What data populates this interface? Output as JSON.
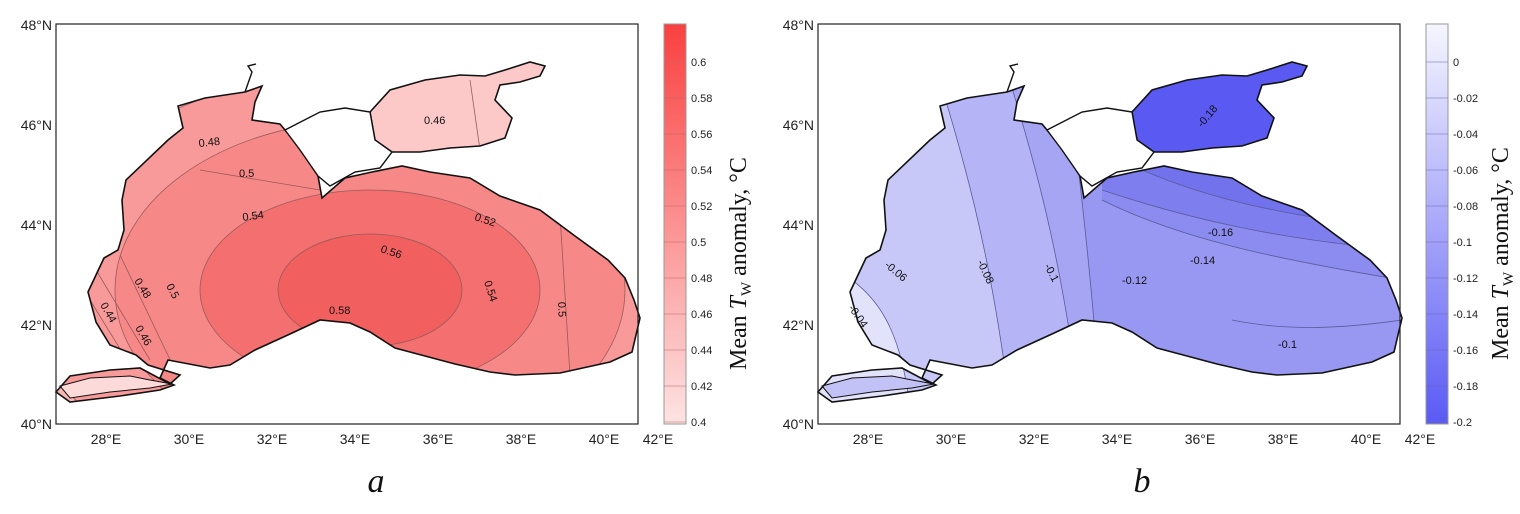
{
  "panels": [
    {
      "id": "a",
      "label": "a",
      "colorbar": {
        "title_prefix": "Mean ",
        "title_symbol": "T",
        "title_sub": "W",
        "title_suffix": " anomaly, °C",
        "ticks": [
          "0.6",
          "0.58",
          "0.56",
          "0.54",
          "0.52",
          "0.5",
          "0.48",
          "0.46",
          "0.44",
          "0.42",
          "0.4"
        ],
        "color_low": "#fde3e3",
        "color_high": "#fa4040"
      },
      "contour_labels": [
        "0.46",
        "0.48",
        "0.5",
        "0.54",
        "0.56",
        "0.52",
        "0.58",
        "0.54",
        "0.5",
        "0.48",
        "0.5",
        "0.46",
        "0.44"
      ]
    },
    {
      "id": "b",
      "label": "b",
      "colorbar": {
        "title_prefix": "Mean ",
        "title_symbol": "T",
        "title_sub": "W",
        "title_suffix": " anomaly, °C",
        "ticks": [
          "0",
          "-0.02",
          "-0.04",
          "-0.06",
          "-0.08",
          "-0.1",
          "-0.12",
          "-0.14",
          "-0.16",
          "-0.18",
          "-0.2"
        ],
        "color_low": "#5a5af5",
        "color_high": "#f6f6ff"
      },
      "contour_labels": [
        "-0.18",
        "-0.16",
        "-0.14",
        "-0.12",
        "-0.1",
        "-0.08",
        "-0.06",
        "-0.04",
        "-0.1"
      ]
    }
  ],
  "axes": {
    "lat_ticks": [
      "48°N",
      "46°N",
      "44°N",
      "42°N",
      "40°N"
    ],
    "lon_ticks": [
      "28°E",
      "30°E",
      "32°E",
      "34°E",
      "36°E",
      "38°E",
      "40°E",
      "42°E"
    ]
  },
  "colors": {
    "frame": "#222222",
    "land": "#ffffff",
    "contour_a": "#9a5a5a",
    "contour_b": "#5a5a9a"
  }
}
